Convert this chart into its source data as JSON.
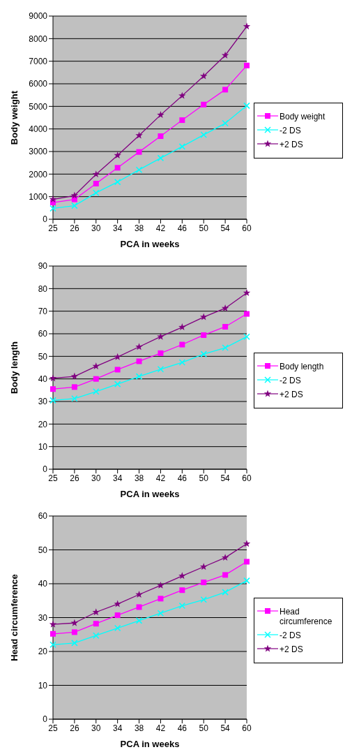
{
  "chart_data": [
    {
      "type": "line",
      "ylabel": "Body weight",
      "xlabel": "PCA in weeks",
      "categories": [
        "25",
        "26",
        "30",
        "34",
        "38",
        "42",
        "46",
        "50",
        "54",
        "60"
      ],
      "ylim": [
        0,
        9000
      ],
      "yticks": [
        0,
        1000,
        2000,
        3000,
        4000,
        5000,
        6000,
        7000,
        8000,
        9000
      ],
      "grid": "y",
      "legend": "right",
      "series": [
        {
          "name": "Body weight",
          "color": "#ff00ff",
          "marker": "square",
          "values": [
            740,
            880,
            1580,
            2280,
            2980,
            3680,
            4390,
            5080,
            5740,
            6810
          ]
        },
        {
          "name": "-2 DS",
          "color": "#00ffff",
          "marker": "cross",
          "values": [
            480,
            600,
            1170,
            1650,
            2190,
            2710,
            3220,
            3740,
            4250,
            5030
          ]
        },
        {
          "name": "+2 DS",
          "color": "#800080",
          "marker": "star",
          "values": [
            880,
            1050,
            1990,
            2830,
            3710,
            4620,
            5470,
            6340,
            7260,
            8540
          ]
        }
      ]
    },
    {
      "type": "line",
      "ylabel": "Body length",
      "xlabel": "PCA in weeks",
      "categories": [
        "25",
        "26",
        "30",
        "34",
        "38",
        "42",
        "46",
        "50",
        "54",
        "60"
      ],
      "ylim": [
        0,
        90
      ],
      "yticks": [
        0,
        10,
        20,
        30,
        40,
        50,
        60,
        70,
        80,
        90
      ],
      "grid": "y",
      "legend": "right",
      "series": [
        {
          "name": "Body length",
          "color": "#ff00ff",
          "marker": "square",
          "values": [
            35.5,
            36.4,
            40,
            44.1,
            47.8,
            51.4,
            55.2,
            59.4,
            63.1,
            68.8
          ]
        },
        {
          "name": "-2 DS",
          "color": "#00ffff",
          "marker": "cross",
          "values": [
            30.5,
            31.3,
            34.4,
            37.7,
            41.1,
            44.3,
            47.3,
            51,
            53.8,
            58.7
          ]
        },
        {
          "name": "+2 DS",
          "color": "#800080",
          "marker": "star",
          "values": [
            40.3,
            41.1,
            45.6,
            49.7,
            54.2,
            58.7,
            62.9,
            67.4,
            71.3,
            78.1
          ]
        }
      ]
    },
    {
      "type": "line",
      "ylabel": "Head circumference",
      "xlabel": "PCA in weeks",
      "categories": [
        "25",
        "26",
        "30",
        "34",
        "38",
        "42",
        "46",
        "50",
        "54",
        "60"
      ],
      "ylim": [
        0,
        60
      ],
      "yticks": [
        0,
        10,
        20,
        30,
        40,
        50,
        60
      ],
      "grid": "y",
      "legend": "right",
      "series": [
        {
          "name": "Head circumference",
          "color": "#ff00ff",
          "marker": "square",
          "values": [
            25.2,
            25.7,
            28.2,
            30.7,
            33.1,
            35.6,
            38.1,
            40.4,
            42.6,
            46.5
          ]
        },
        {
          "name": "-2 DS",
          "color": "#00ffff",
          "marker": "cross",
          "values": [
            22,
            22.5,
            24.7,
            26.9,
            29.1,
            31.3,
            33.5,
            35.3,
            37.5,
            40.9
          ]
        },
        {
          "name": "+2 DS",
          "color": "#800080",
          "marker": "star",
          "values": [
            28,
            28.4,
            31.6,
            34,
            36.8,
            39.5,
            42.3,
            45,
            47.7,
            51.8
          ]
        }
      ]
    }
  ]
}
